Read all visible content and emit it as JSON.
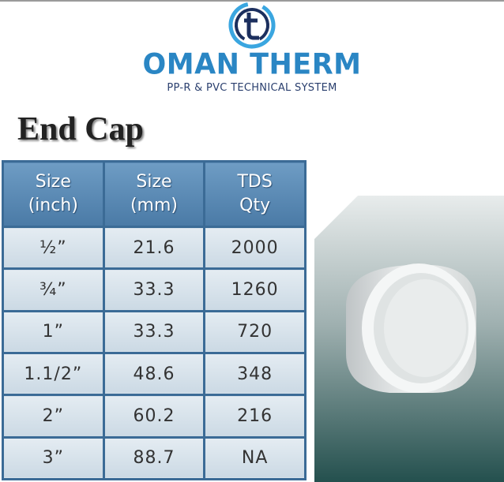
{
  "header": {
    "brand": "OMAN THERM",
    "tagline": "PP-R & PVC TECHNICAL SYSTEM"
  },
  "title": "End Cap",
  "table": {
    "columns": [
      [
        "Size",
        "(inch)"
      ],
      [
        "Size",
        "(mm)"
      ],
      [
        "TDS",
        "Qty"
      ]
    ],
    "rows": [
      [
        "½”",
        "21.6",
        "2000"
      ],
      [
        "¾”",
        "33.3",
        "1260"
      ],
      [
        "1”",
        "33.3",
        "720"
      ],
      [
        "1.1/2”",
        "48.6",
        "348"
      ],
      [
        "2”",
        "60.2",
        "216"
      ],
      [
        "3”",
        "88.7",
        "NA"
      ]
    ]
  }
}
